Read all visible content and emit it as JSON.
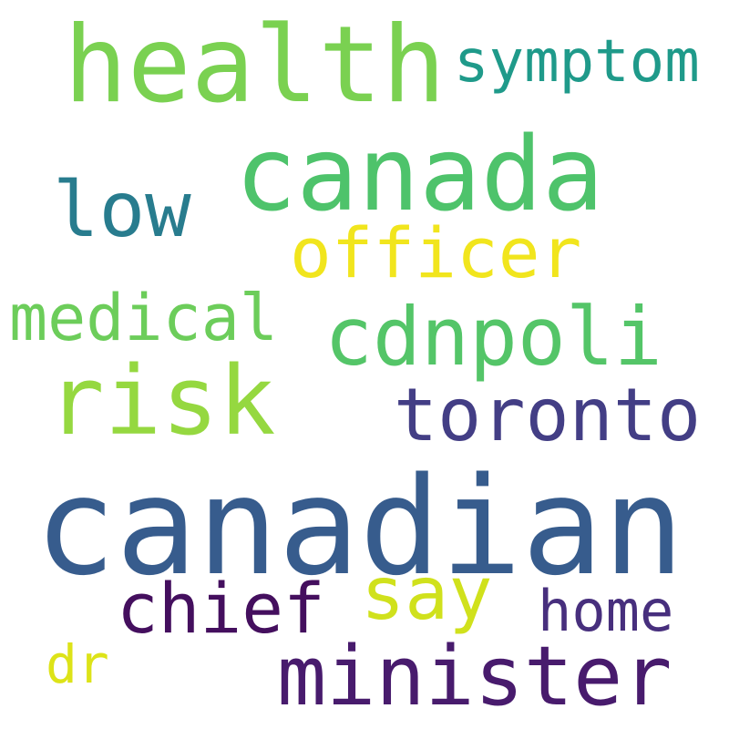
{
  "word_cloud": {
    "words": [
      {
        "text": "health",
        "color": "#7ad151"
      },
      {
        "text": "symptom",
        "color": "#1f9a8a"
      },
      {
        "text": "canada",
        "color": "#4ec36b"
      },
      {
        "text": "low",
        "color": "#287c8e"
      },
      {
        "text": "officer",
        "color": "#f1e51d"
      },
      {
        "text": "medical",
        "color": "#6ccd5a"
      },
      {
        "text": "cdnpoli",
        "color": "#54c568"
      },
      {
        "text": "risk",
        "color": "#95d840"
      },
      {
        "text": "toronto",
        "color": "#433e85"
      },
      {
        "text": "canadian",
        "color": "#375c8d"
      },
      {
        "text": "say",
        "color": "#d0e11c"
      },
      {
        "text": "chief",
        "color": "#440f5e"
      },
      {
        "text": "home",
        "color": "#472f7d"
      },
      {
        "text": "dr",
        "color": "#dde318"
      },
      {
        "text": "minister",
        "color": "#481b6d"
      }
    ]
  }
}
